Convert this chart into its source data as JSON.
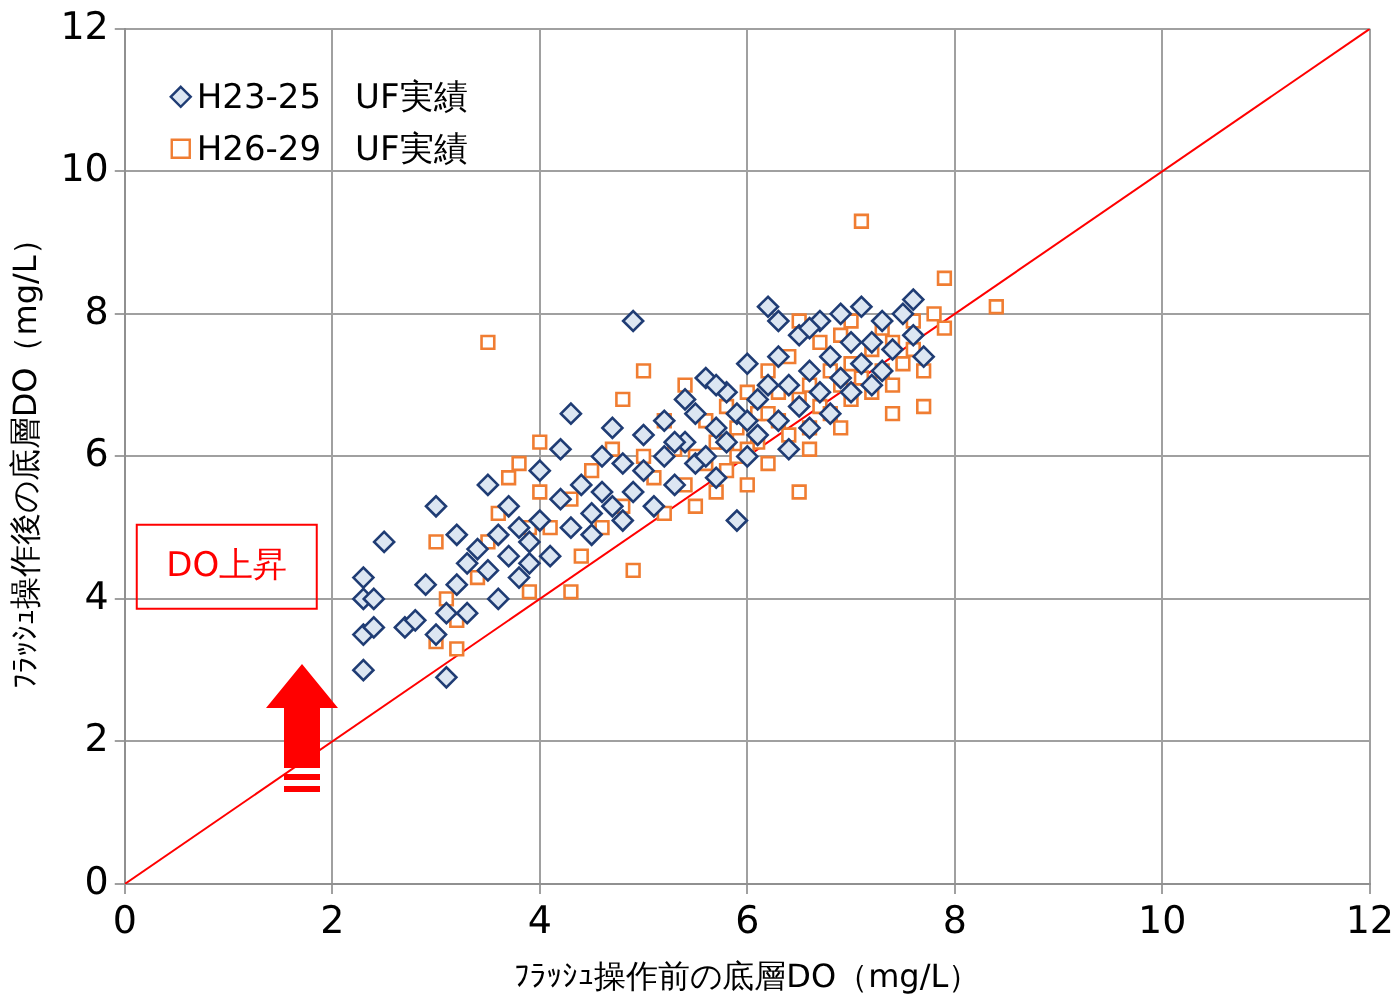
{
  "chart_data": {
    "type": "scatter",
    "xlabel": "ﾌﾗｯｼｭ操作前の底層DO（mg/L）",
    "ylabel": "ﾌﾗｯｼｭ操作後の底層DO（mg/L）",
    "xlim": [
      0,
      12
    ],
    "ylim": [
      0,
      12
    ],
    "xticks": [
      0,
      2,
      4,
      6,
      8,
      10,
      12
    ],
    "yticks": [
      0,
      2,
      4,
      6,
      8,
      10,
      12
    ],
    "grid": true,
    "legend": "top left",
    "annotations": [
      "DO上昇"
    ],
    "series": [
      {
        "name": "H23-25　UF実績",
        "color": "#1f3c74",
        "marker": "diamond",
        "x": [
          2.3,
          2.3,
          2.3,
          2.3,
          2.4,
          2.5,
          2.4,
          2.7,
          2.8,
          2.9,
          3.0,
          3.0,
          3.1,
          3.1,
          3.2,
          3.2,
          3.3,
          3.3,
          3.4,
          3.5,
          3.5,
          3.6,
          3.6,
          3.7,
          3.7,
          3.8,
          3.8,
          3.9,
          3.9,
          4.0,
          4.0,
          4.1,
          4.2,
          4.2,
          4.3,
          4.3,
          4.4,
          4.5,
          4.5,
          4.6,
          4.6,
          4.7,
          4.7,
          4.8,
          4.8,
          4.9,
          4.9,
          5.0,
          5.0,
          5.1,
          5.2,
          5.2,
          5.3,
          5.4,
          5.4,
          5.5,
          5.5,
          5.6,
          5.6,
          5.7,
          5.7,
          5.8,
          5.8,
          5.9,
          5.9,
          6.0,
          6.0,
          6.1,
          6.1,
          6.2,
          6.2,
          6.3,
          6.3,
          6.4,
          6.4,
          6.5,
          6.5,
          6.6,
          6.6,
          6.7,
          6.7,
          6.8,
          6.8,
          6.9,
          6.9,
          7.0,
          7.0,
          7.1,
          7.1,
          7.2,
          7.2,
          7.3,
          7.3,
          7.4,
          7.5,
          7.6,
          7.6,
          7.7,
          6.3,
          6.0,
          5.3,
          5.7,
          6.6
        ],
        "values": [
          3.0,
          3.5,
          4.0,
          4.3,
          3.6,
          4.8,
          4.0,
          3.6,
          3.7,
          4.2,
          5.3,
          3.5,
          2.9,
          3.8,
          4.2,
          4.9,
          4.5,
          3.8,
          4.7,
          4.4,
          5.6,
          4.0,
          4.9,
          5.3,
          4.6,
          4.3,
          5.0,
          4.5,
          4.8,
          5.1,
          5.8,
          4.6,
          6.1,
          5.4,
          5.0,
          6.6,
          5.6,
          5.2,
          4.9,
          6.0,
          5.5,
          5.3,
          6.4,
          5.9,
          5.1,
          7.9,
          5.5,
          6.3,
          5.8,
          5.3,
          6.0,
          6.5,
          5.6,
          6.8,
          6.2,
          5.9,
          6.6,
          7.1,
          6.0,
          6.4,
          5.7,
          6.9,
          6.2,
          5.1,
          6.6,
          7.3,
          6.0,
          6.8,
          6.3,
          8.1,
          7.0,
          6.5,
          7.4,
          6.1,
          7.0,
          7.7,
          6.7,
          7.2,
          6.4,
          7.9,
          6.9,
          7.4,
          6.6,
          8.0,
          7.1,
          7.6,
          6.9,
          7.3,
          8.1,
          7.0,
          7.6,
          7.9,
          7.2,
          7.5,
          8.0,
          8.2,
          7.7,
          7.4,
          7.9,
          6.5,
          6.2,
          7.0,
          7.8
        ]
      },
      {
        "name": "H26-29　UF実績",
        "color": "#f07d32",
        "marker": "square",
        "x": [
          3.5,
          3.0,
          3.2,
          3.1,
          3.0,
          3.2,
          3.4,
          3.5,
          3.6,
          3.7,
          3.8,
          3.9,
          3.9,
          4.0,
          4.0,
          4.1,
          4.3,
          4.3,
          4.4,
          4.5,
          4.6,
          4.7,
          4.8,
          4.9,
          5.0,
          5.0,
          4.8,
          5.1,
          5.2,
          5.3,
          5.4,
          5.5,
          5.5,
          5.6,
          5.6,
          5.7,
          5.7,
          5.8,
          5.8,
          5.9,
          5.9,
          6.0,
          6.0,
          6.1,
          6.1,
          6.2,
          6.2,
          6.3,
          6.3,
          6.4,
          6.4,
          6.5,
          6.5,
          6.6,
          6.6,
          6.7,
          6.7,
          6.8,
          6.8,
          6.9,
          6.9,
          7.0,
          7.0,
          7.1,
          7.1,
          7.2,
          7.2,
          7.3,
          7.3,
          7.4,
          7.4,
          7.5,
          7.6,
          7.6,
          7.7,
          7.7,
          7.8,
          7.9,
          7.9,
          8.4,
          6.5,
          5.2,
          5.4,
          6.0,
          6.2,
          5.8,
          6.6,
          6.9,
          7.4,
          7.0
        ],
        "values": [
          7.6,
          3.4,
          3.3,
          4.0,
          4.8,
          3.7,
          4.3,
          4.8,
          5.2,
          5.7,
          5.9,
          4.1,
          5.0,
          6.2,
          5.5,
          5.0,
          4.1,
          5.4,
          4.6,
          5.8,
          5.0,
          6.1,
          5.3,
          4.4,
          6.0,
          7.2,
          6.8,
          5.7,
          5.2,
          6.1,
          5.6,
          6.0,
          5.3,
          6.5,
          5.9,
          5.5,
          6.2,
          6.7,
          5.8,
          6.0,
          6.4,
          5.6,
          6.9,
          6.2,
          6.6,
          7.2,
          5.9,
          6.5,
          6.9,
          6.3,
          7.4,
          5.5,
          6.8,
          7.0,
          6.4,
          7.6,
          6.7,
          7.2,
          6.6,
          7.0,
          7.7,
          6.8,
          7.3,
          9.3,
          7.1,
          7.5,
          6.9,
          7.8,
          7.2,
          7.0,
          7.6,
          7.3,
          7.9,
          7.5,
          7.2,
          6.7,
          8.0,
          8.5,
          7.8,
          8.1,
          7.9,
          6.5,
          7.0,
          6.1,
          6.6,
          6.2,
          6.1,
          6.4,
          6.6,
          7.9
        ]
      },
      {
        "type": "line",
        "color": "#ff0000",
        "marker": "none",
        "x": [
          0,
          12
        ],
        "values": [
          0,
          12
        ]
      }
    ]
  }
}
